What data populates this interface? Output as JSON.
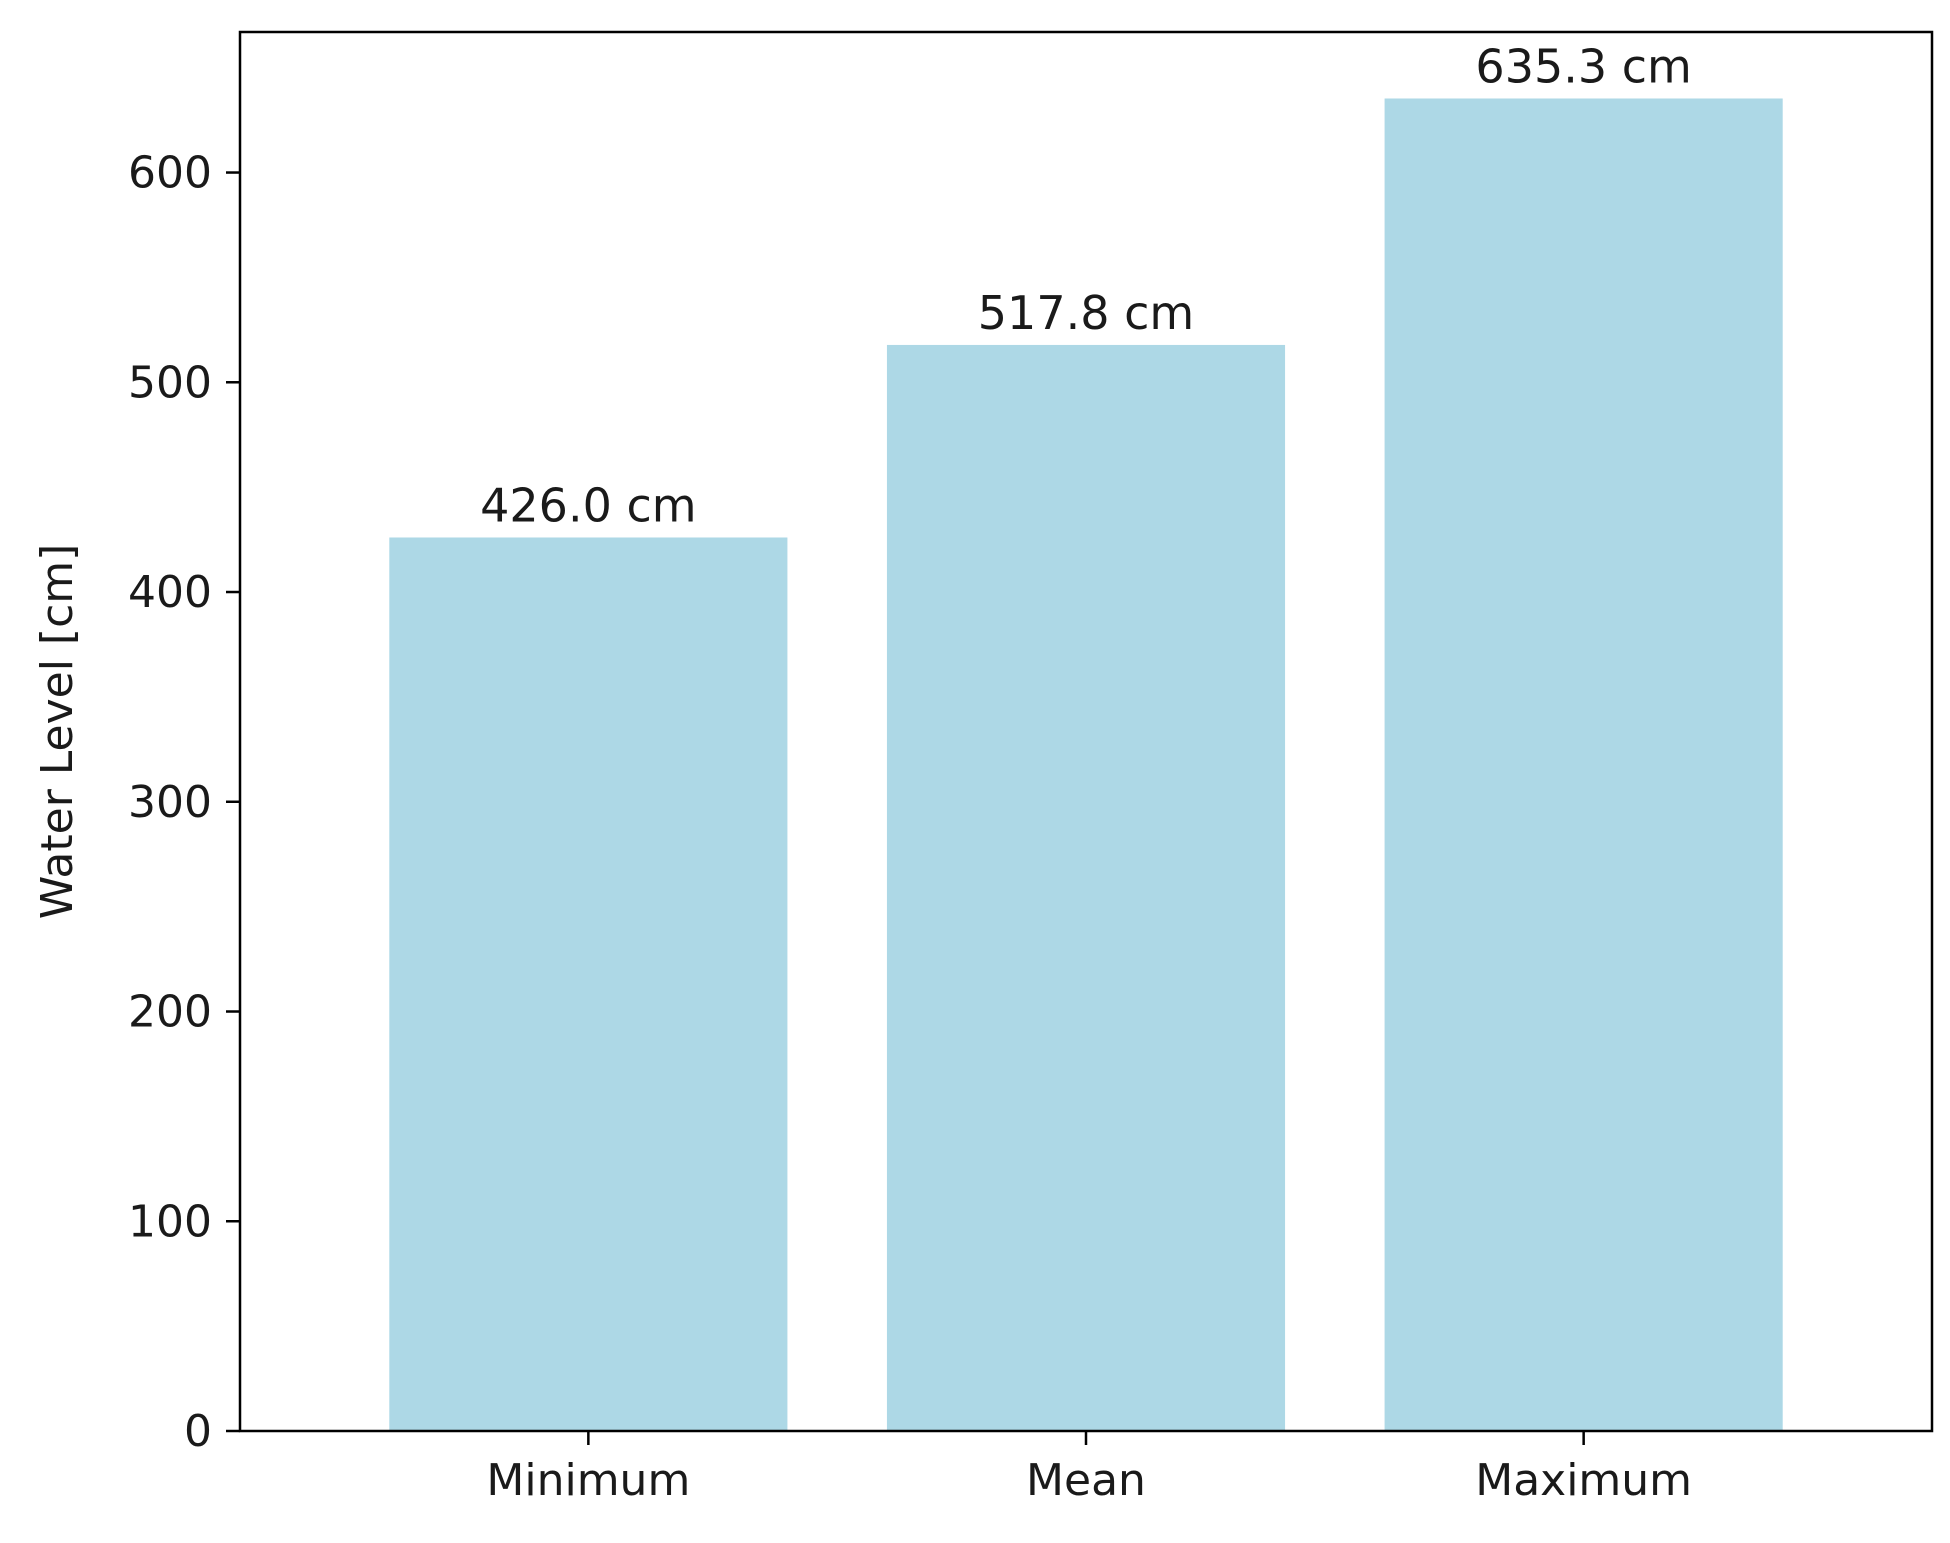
{
  "chart_data": {
    "type": "bar",
    "categories": [
      "Minimum",
      "Mean",
      "Maximum"
    ],
    "values": [
      426.0,
      517.8,
      635.3
    ],
    "data_labels": [
      "426.0 cm",
      "517.8 cm",
      "635.3 cm"
    ],
    "title": "",
    "xlabel": "",
    "ylabel": "Water Level [cm]",
    "ylim": [
      0,
      667
    ],
    "yticks": [
      0,
      100,
      200,
      300,
      400,
      500,
      600
    ],
    "ytick_labels": [
      "0",
      "100",
      "200",
      "300",
      "400",
      "500",
      "600"
    ],
    "grid": false,
    "legend": "none",
    "bar_color": "#add8e6",
    "axis_color": "#000000"
  }
}
